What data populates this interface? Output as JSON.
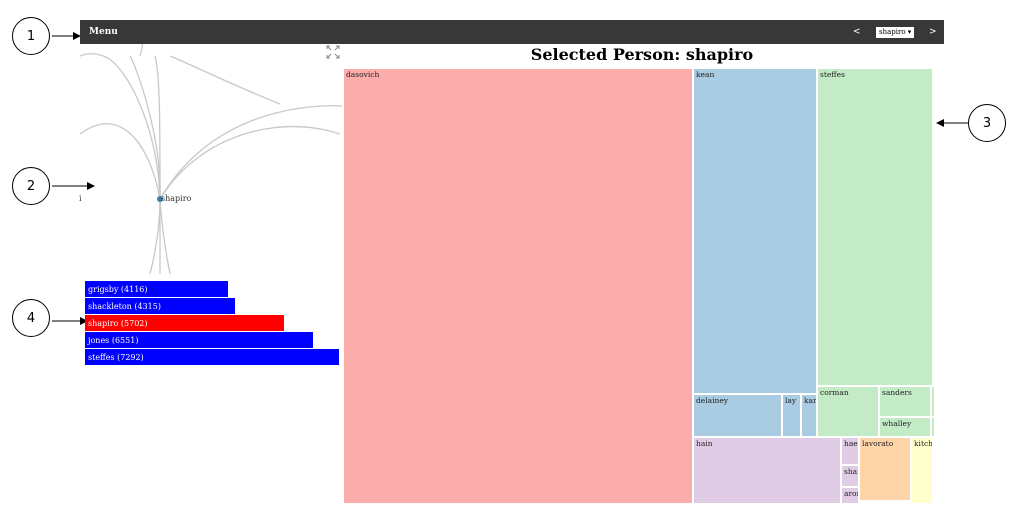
{
  "menubar": {
    "menu_label": "Menu",
    "prev_label": "<",
    "next_label": ">",
    "selected_person": "shapiro ▾"
  },
  "callouts": [
    "1",
    "2",
    "3",
    "4"
  ],
  "treemap": {
    "title": "Selected Person: shapiro",
    "cells": [
      {
        "label": "dasovich",
        "color": "#fbadab"
      },
      {
        "label": "kean",
        "color": "#a9cce3"
      },
      {
        "label": "steffes",
        "color": "#c2ebc6"
      },
      {
        "label": "delainey",
        "color": "#a9cce3"
      },
      {
        "label": "lay",
        "color": "#a9cce3"
      },
      {
        "label": "kam",
        "color": "#a9cce3"
      },
      {
        "label": "corman",
        "color": "#c2ebc6"
      },
      {
        "label": "sanders",
        "color": "#c2ebc6"
      },
      {
        "label": "",
        "color": "#c2ebc6"
      },
      {
        "label": "whalley",
        "color": "#c2ebc6"
      },
      {
        "label": "",
        "color": "#c2ebc6"
      },
      {
        "label": "hain",
        "color": "#e0cce4"
      },
      {
        "label": "haed",
        "color": "#e0cce4"
      },
      {
        "label": "shan",
        "color": "#e0cce4"
      },
      {
        "label": "arora",
        "color": "#e0cce4"
      },
      {
        "label": "lavorato",
        "color": "#fed5a8"
      },
      {
        "label": "kitche",
        "color": "#ffffcc"
      }
    ]
  },
  "tree": {
    "node_label": "shapiro",
    "edge_char": "i",
    "node_color": "#3a7ca5"
  },
  "bars": [
    {
      "label": "grigsby (4116)",
      "value": 4116,
      "color": "#0000ff"
    },
    {
      "label": "shackleton (4315)",
      "value": 4315,
      "color": "#0000ff"
    },
    {
      "label": "shapiro (5702)",
      "value": 5702,
      "color": "#ff0000"
    },
    {
      "label": "jones (6551)",
      "value": 6551,
      "color": "#0000ff"
    },
    {
      "label": "steffes (7292)",
      "value": 7292,
      "color": "#0000ff"
    }
  ]
}
